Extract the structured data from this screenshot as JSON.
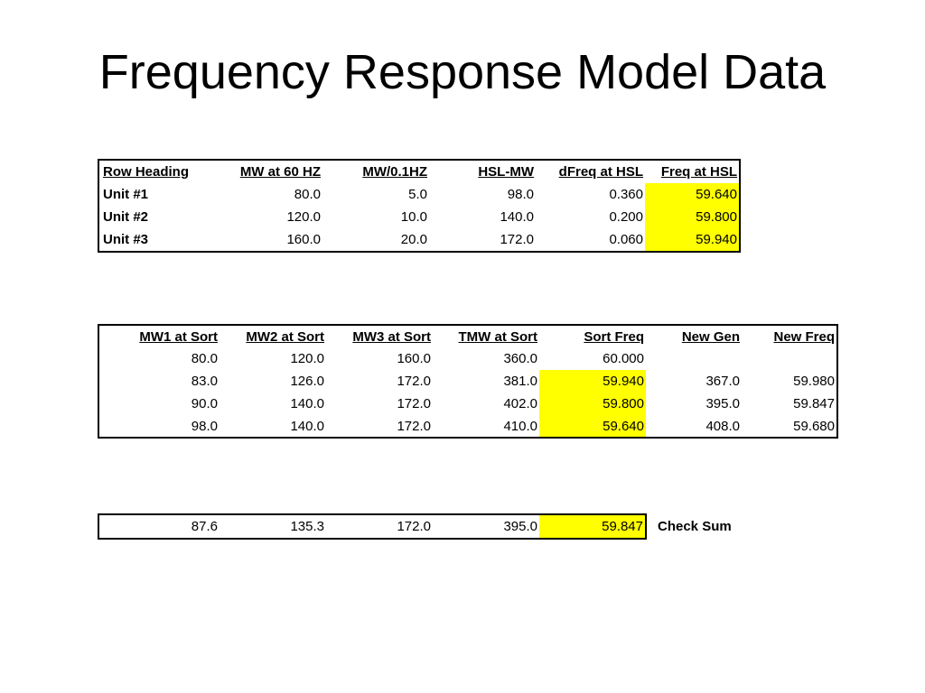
{
  "slide": {
    "title": "Frequency Response Model Data"
  },
  "unit_table": {
    "headers": [
      "Row Heading",
      "MW at 60 HZ",
      "MW/0.1HZ",
      "HSL-MW",
      "dFreq at HSL",
      "Freq at HSL"
    ],
    "rows": [
      [
        "Unit #1",
        "80.0",
        "5.0",
        "98.0",
        "0.360",
        "59.640"
      ],
      [
        "Unit #2",
        "120.0",
        "10.0",
        "140.0",
        "0.200",
        "59.800"
      ],
      [
        "Unit #3",
        "160.0",
        "20.0",
        "172.0",
        "0.060",
        "59.940"
      ]
    ],
    "highlight_color": "#ffff00"
  },
  "sort_table": {
    "headers": [
      "MW1 at Sort",
      "MW2 at Sort",
      "MW3 at Sort",
      "TMW at Sort",
      "Sort Freq",
      "New Gen",
      "New Freq"
    ],
    "rows": [
      [
        "80.0",
        "120.0",
        "160.0",
        "360.0",
        "60.000",
        "",
        ""
      ],
      [
        "83.0",
        "126.0",
        "172.0",
        "381.0",
        "59.940",
        "367.0",
        "59.980"
      ],
      [
        "90.0",
        "140.0",
        "172.0",
        "402.0",
        "59.800",
        "395.0",
        "59.847"
      ],
      [
        "98.0",
        "140.0",
        "172.0",
        "410.0",
        "59.640",
        "408.0",
        "59.680"
      ]
    ]
  },
  "check_table": {
    "values": [
      "87.6",
      "135.3",
      "172.0",
      "395.0",
      "59.847"
    ],
    "label": "Check Sum"
  }
}
